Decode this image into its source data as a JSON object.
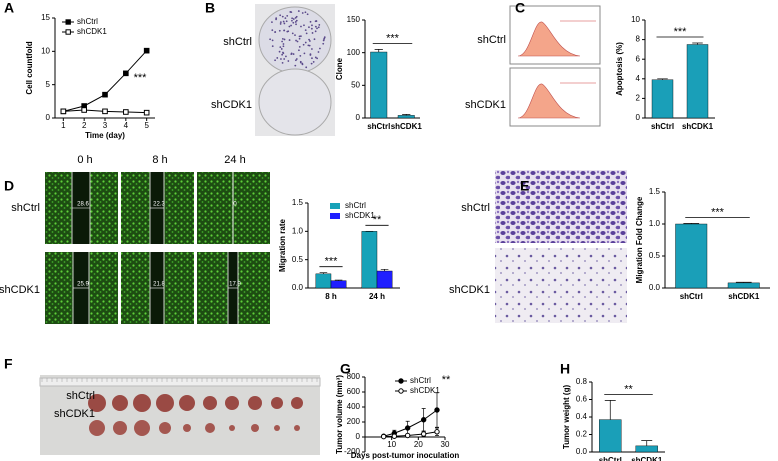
{
  "figure": {
    "letters": [
      "A",
      "B",
      "C",
      "D",
      "E",
      "F",
      "G",
      "H"
    ],
    "b_labels": [
      "shCtrl",
      "shCDK1"
    ],
    "c_labels": [
      "shCtrl",
      "shCDK1"
    ],
    "d_columns": [
      "0 h",
      "8 h",
      "24 h"
    ],
    "d_rows": [
      "shCtrl",
      "shCDK1"
    ],
    "d_widths": [
      "28.6",
      "22.3",
      "0",
      "25.9",
      "21.8",
      "17.9"
    ],
    "e_labels": [
      "shCtrl",
      "shCDK1"
    ],
    "f_labels": [
      "shCtrl",
      "shCDK1"
    ]
  },
  "chart_data": [
    {
      "type": "line",
      "xlabel": "Time (day)",
      "ylabel": "Cell countfold",
      "x": [
        1,
        2,
        3,
        4,
        5
      ],
      "xlim": [
        0.6,
        5.4
      ],
      "xticks": [
        1,
        2,
        3,
        4,
        5
      ],
      "ylim": [
        0,
        15
      ],
      "yticks": [
        0,
        5,
        10,
        15
      ],
      "annotation": "***",
      "series": [
        {
          "name": "shCtrl",
          "color": "#000000",
          "marker": "square",
          "filled": true,
          "values": [
            1,
            1.8,
            3.5,
            6.7,
            10.1
          ]
        },
        {
          "name": "shCDK1",
          "color": "#000000",
          "marker": "square",
          "filled": false,
          "values": [
            1,
            1.2,
            1.0,
            0.9,
            0.8
          ]
        }
      ]
    },
    {
      "type": "bar",
      "ylabel": "Clone",
      "categories": [
        "shCtrl",
        "shCDK1"
      ],
      "values": [
        101,
        4
      ],
      "errors": [
        4,
        1.5
      ],
      "color": "#1a9fb8",
      "ylim": [
        0,
        150
      ],
      "yticks": [
        0,
        50,
        100,
        150
      ],
      "annotation": "***"
    },
    {
      "type": "bar",
      "ylabel": "Apoptosis (%)",
      "categories": [
        "shCtrl",
        "shCDK1"
      ],
      "values": [
        3.9,
        7.5
      ],
      "errors": [
        0.1,
        0.15
      ],
      "color": "#1a9fb8",
      "ylim": [
        0,
        10
      ],
      "yticks": [
        0,
        2,
        4,
        6,
        8,
        10
      ],
      "annotation": "***"
    },
    {
      "type": "bar",
      "ylabel": "Migration rate",
      "categories": [
        "8 h",
        "24 h"
      ],
      "annotations": [
        "***",
        "**"
      ],
      "ylim": [
        0,
        1.5
      ],
      "yticks": [
        {
          "value": 0,
          "label": "0.0"
        },
        0.5,
        {
          "value": 1,
          "label": "1.0"
        },
        1.5
      ],
      "series": [
        {
          "name": "shCtrl",
          "color": "#17a2b8",
          "values": [
            0.25,
            1.0
          ],
          "errors": [
            0.02,
            0
          ]
        },
        {
          "name": "shCDK1",
          "color": "#1f1fff",
          "values": [
            0.13,
            0.3
          ],
          "errors": [
            0.01,
            0.03
          ]
        }
      ]
    },
    {
      "type": "bar",
      "ylabel": "Migration Fold Change",
      "categories": [
        "shCtrl",
        "shCDK1"
      ],
      "values": [
        1.0,
        0.08
      ],
      "errors": [
        0.01,
        0.01
      ],
      "color": "#1a9fb8",
      "ylim": [
        0,
        1.5
      ],
      "yticks": [
        {
          "value": 0,
          "label": "0.0"
        },
        0.5,
        {
          "value": 1,
          "label": "1.0"
        },
        1.5
      ],
      "annotation": "***"
    },
    {
      "type": "line",
      "xlabel": "Days post-tumor inoculation",
      "ylabel": "Tumor volume (mm³)",
      "x": [
        7,
        11,
        16,
        22,
        27
      ],
      "xlim": [
        0,
        30
      ],
      "xticks": [
        10,
        20,
        30
      ],
      "ylim": [
        -200,
        800
      ],
      "yticks": [
        -200,
        0,
        200,
        400,
        600,
        800
      ],
      "annotation": "**",
      "series": [
        {
          "name": "shCtrl",
          "color": "#000000",
          "marker": "circle",
          "filled": true,
          "values": [
            10,
            50,
            120,
            230,
            360
          ],
          "errors": [
            10,
            40,
            90,
            150,
            230
          ]
        },
        {
          "name": "shCDK1",
          "color": "#000000",
          "marker": "circle",
          "filled": false,
          "values": [
            5,
            10,
            20,
            40,
            70
          ],
          "errors": [
            5,
            10,
            20,
            30,
            50
          ]
        }
      ]
    },
    {
      "type": "bar",
      "ylabel": "Tumor weight (g)",
      "categories": [
        "shCtrl",
        "shCDK1"
      ],
      "values": [
        0.37,
        0.07
      ],
      "errors": [
        0.22,
        0.06
      ],
      "color": "#1a9fb8",
      "ylim": [
        0,
        0.8
      ],
      "yticks": [
        {
          "value": 0,
          "label": "0.0"
        },
        0.2,
        0.4,
        0.6,
        0.8
      ],
      "annotation": "**"
    }
  ]
}
